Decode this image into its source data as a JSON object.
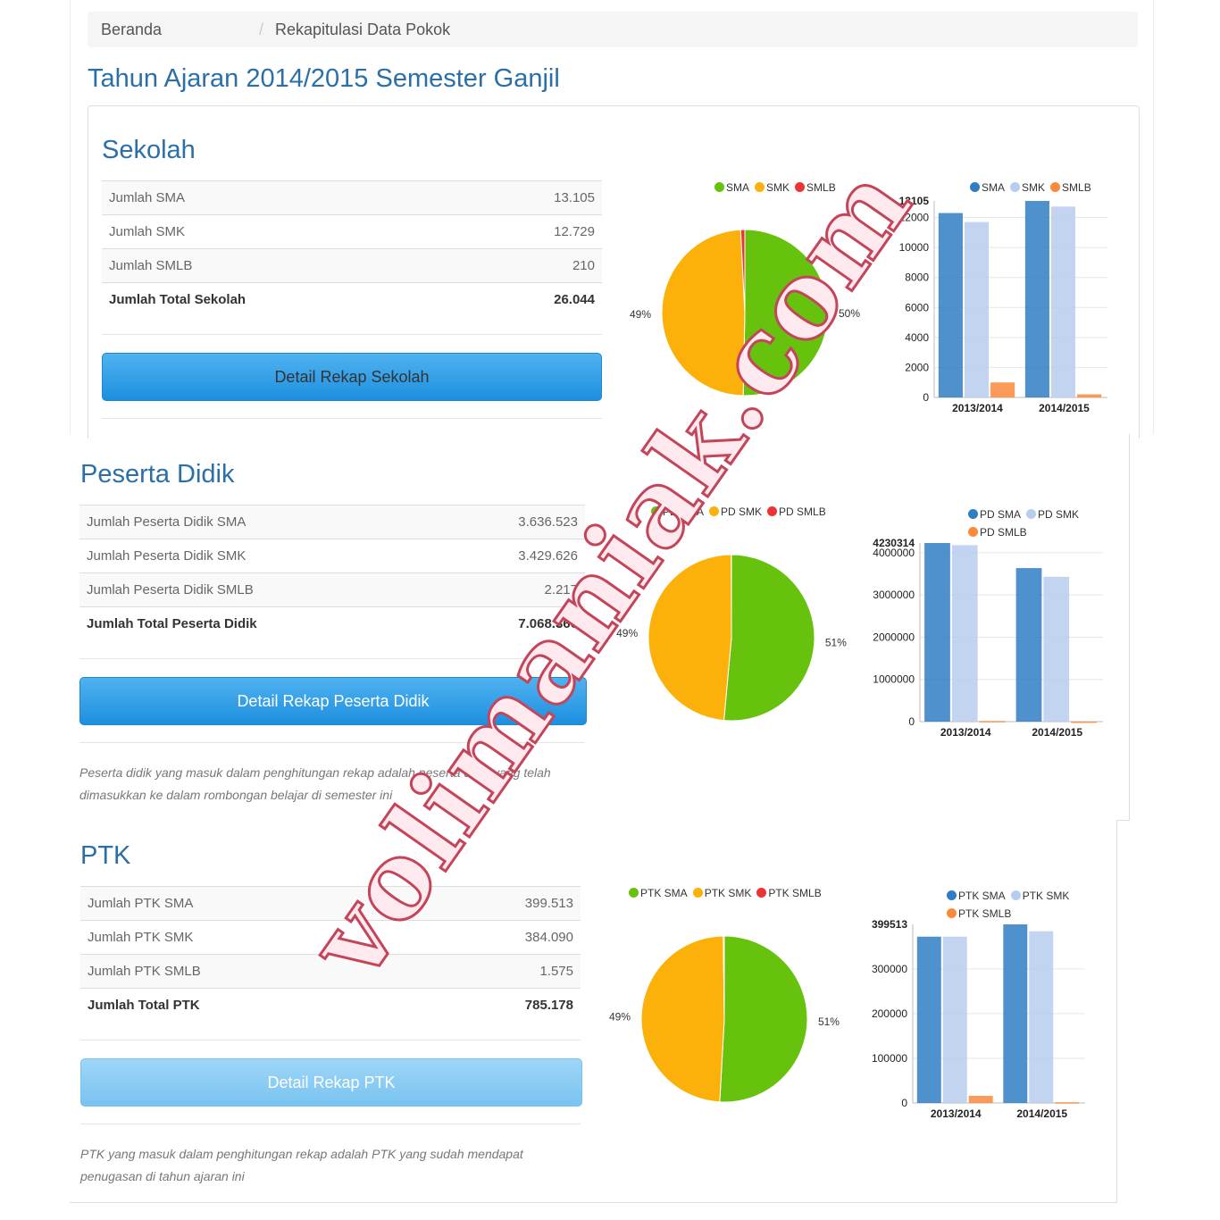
{
  "breadcrumb": {
    "home": "Beranda",
    "sep": "/",
    "current": "Rekapitulasi Data Pokok"
  },
  "page_title": "Tahun Ajaran 2014/2015 Semester Ganjil",
  "colors": {
    "green": "#66c20c",
    "yellow": "#fbb00a",
    "red": "#ee3333",
    "blue": "#2f7ec4",
    "lightblue": "#b7cded",
    "orange": "#fa8a3a"
  },
  "sections": [
    {
      "title": "Sekolah",
      "rows": [
        {
          "label": "Jumlah SMA",
          "value": "13.105"
        },
        {
          "label": "Jumlah SMK",
          "value": "12.729"
        },
        {
          "label": "Jumlah SMLB",
          "value": "210"
        }
      ],
      "total": {
        "label": "Jumlah Total Sekolah",
        "value": "26.044"
      },
      "button": "Detail Rekap Sekolah",
      "pie_legend": [
        "SMA",
        "SMK",
        "SMLB"
      ],
      "bar_legend": [
        "SMA",
        "SMK",
        "SMLB"
      ]
    },
    {
      "title": "Peserta Didik",
      "rows": [
        {
          "label": "Jumlah Peserta Didik SMA",
          "value": "3.636.523"
        },
        {
          "label": "Jumlah Peserta Didik SMK",
          "value": "3.429.626"
        },
        {
          "label": "Jumlah Peserta Didik SMLB",
          "value": "2.217"
        }
      ],
      "total": {
        "label": "Jumlah Total Peserta Didik",
        "value": "7.068.366"
      },
      "button": "Detail Rekap Peserta Didik",
      "pie_legend": [
        "PD SMA",
        "PD SMK",
        "PD SMLB"
      ],
      "bar_legend": [
        "PD SMA",
        "PD SMK",
        "PD SMLB"
      ],
      "note": "Peserta didik yang masuk dalam penghitungan rekap adalah peserta didik yang telah dimasukkan ke dalam rombongan belajar di semester ini"
    },
    {
      "title": "PTK",
      "rows": [
        {
          "label": "Jumlah PTK SMA",
          "value": "399.513"
        },
        {
          "label": "Jumlah PTK SMK",
          "value": "384.090"
        },
        {
          "label": "Jumlah PTK SMLB",
          "value": "1.575"
        }
      ],
      "total": {
        "label": "Jumlah Total PTK",
        "value": "785.178"
      },
      "button": "Detail Rekap PTK",
      "pie_legend": [
        "PTK SMA",
        "PTK SMK",
        "PTK SMLB"
      ],
      "bar_legend": [
        "PTK SMA",
        "PTK SMK",
        "PTK SMLB"
      ],
      "note": "PTK yang masuk dalam penghitungan rekap adalah PTK yang sudah mendapat penugasan di tahun ajaran ini"
    }
  ],
  "chart_data": [
    {
      "type": "pie",
      "series": [
        "SMA",
        "SMK",
        "SMLB"
      ],
      "values": [
        13105,
        12729,
        210
      ],
      "labels": [
        "50%",
        "49%",
        ""
      ]
    },
    {
      "type": "bar",
      "categories": [
        "2013/2014",
        "2014/2015"
      ],
      "series": [
        {
          "name": "SMA",
          "values": [
            12300,
            13105
          ]
        },
        {
          "name": "SMK",
          "values": [
            11700,
            12729
          ]
        },
        {
          "name": "SMLB",
          "values": [
            1000,
            210
          ]
        }
      ],
      "ylim": [
        0,
        13105
      ],
      "yticks": [
        "0",
        "2000",
        "4000",
        "6000",
        "8000",
        "10000",
        "12000",
        "13105"
      ]
    },
    {
      "type": "pie",
      "series": [
        "PD SMA",
        "PD SMK",
        "PD SMLB"
      ],
      "values": [
        3636523,
        3429626,
        2217
      ],
      "labels": [
        "51%",
        "49%",
        ""
      ]
    },
    {
      "type": "bar",
      "categories": [
        "2013/2014",
        "2014/2015"
      ],
      "series": [
        {
          "name": "PD SMA",
          "values": [
            4230314,
            3636523
          ]
        },
        {
          "name": "PD SMK",
          "values": [
            4180000,
            3429626
          ]
        },
        {
          "name": "PD SMLB",
          "values": [
            15000,
            2217
          ]
        }
      ],
      "ylim": [
        0,
        4230314
      ],
      "yticks": [
        "0",
        "1000000",
        "2000000",
        "3000000",
        "4000000",
        "4230314"
      ]
    },
    {
      "type": "pie",
      "series": [
        "PTK SMA",
        "PTK SMK",
        "PTK SMLB"
      ],
      "values": [
        399513,
        384090,
        1575
      ],
      "labels": [
        "51%",
        "49%",
        ""
      ]
    },
    {
      "type": "bar",
      "categories": [
        "2013/2014",
        "2014/2015"
      ],
      "series": [
        {
          "name": "PTK SMA",
          "values": [
            372000,
            399513
          ]
        },
        {
          "name": "PTK SMK",
          "values": [
            372000,
            384090
          ]
        },
        {
          "name": "PTK SMLB",
          "values": [
            16000,
            1575
          ]
        }
      ],
      "ylim": [
        0,
        399513
      ],
      "yticks": [
        "0",
        "100000",
        "200000",
        "300000",
        "399513"
      ]
    }
  ],
  "watermark": "volimaniak.com"
}
